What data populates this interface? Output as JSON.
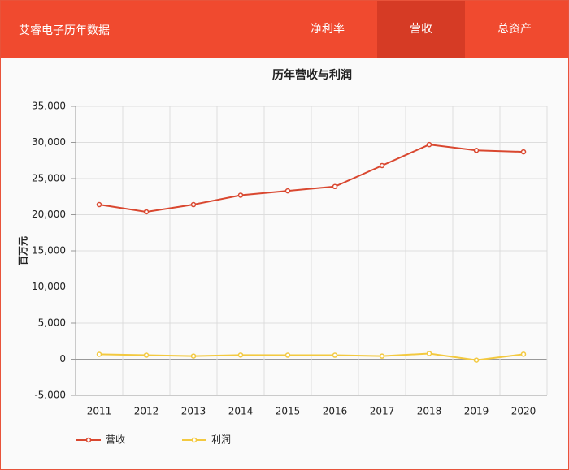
{
  "header": {
    "title": "艾睿电子历年数据",
    "tabs": [
      "净利率",
      "营收",
      "总资产"
    ]
  },
  "chart_data": {
    "type": "line",
    "title": "历年营收与利润",
    "y_label": "百万元",
    "categories": [
      "2011",
      "2012",
      "2013",
      "2014",
      "2015",
      "2016",
      "2017",
      "2018",
      "2019",
      "2020"
    ],
    "series": [
      {
        "name": "营收",
        "color": "#d9472f",
        "values": [
          21400,
          20400,
          21400,
          22700,
          23300,
          23900,
          26800,
          29700,
          28900,
          28700
        ]
      },
      {
        "name": "利润",
        "color": "#f3c93f",
        "values": [
          680,
          560,
          440,
          580,
          560,
          560,
          430,
          790,
          -120,
          690
        ]
      }
    ],
    "ylim": [
      -5000,
      35000
    ],
    "yticks": [
      {
        "value": -5000,
        "label": "-5,000"
      },
      0,
      {
        "value": 5000,
        "label": "5,000"
      },
      {
        "value": 10000,
        "label": "10,000"
      },
      {
        "value": 15000,
        "label": "15,000"
      },
      {
        "value": 20000,
        "label": "20,000"
      },
      {
        "value": 25000,
        "label": "25,000"
      },
      {
        "value": 30000,
        "label": "30,000"
      },
      {
        "value": 35000,
        "label": "35,000"
      }
    ],
    "grid": true
  }
}
